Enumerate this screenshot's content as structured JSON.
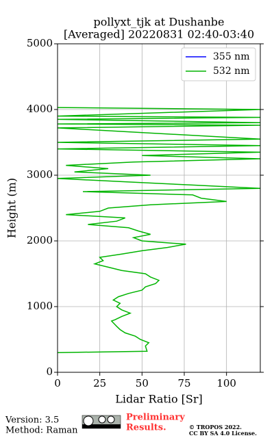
{
  "chart_data": {
    "type": "line",
    "title": "pollyxt_tjk at Dushanbe",
    "subtitle": "[Averaged] 20220831 02:40-03:40",
    "x_label": "Lidar Ratio [Sr]",
    "y_label": "Height (m)",
    "xlim": [
      0,
      120
    ],
    "xticks": [
      0,
      25,
      50,
      75,
      100
    ],
    "ylim": [
      0,
      5000
    ],
    "yticks": [
      0,
      1000,
      2000,
      3000,
      4000,
      5000
    ],
    "grid": true,
    "legend": "upper right",
    "series": [
      {
        "name": "355 nm",
        "color": "#0000ff",
        "y": [],
        "values": []
      },
      {
        "name": "532 nm",
        "color": "#00b400",
        "y": [
          300,
          320,
          400,
          450,
          500,
          550,
          600,
          650,
          700,
          780,
          800,
          850,
          900,
          950,
          1000,
          1050,
          1100,
          1150,
          1200,
          1250,
          1300,
          1350,
          1400,
          1450,
          1500,
          1550,
          1600,
          1650,
          1700,
          1750,
          1800,
          1850,
          1900,
          1950,
          2000,
          2050,
          2100,
          2150,
          2200,
          2250,
          2300,
          2350,
          2400,
          2450,
          2500,
          2550,
          2600,
          2650,
          2700,
          2750,
          2800,
          2850,
          2900,
          2950,
          3000,
          3050,
          3100,
          3150,
          3200,
          3250,
          3300,
          3350,
          3400,
          3450,
          3500,
          3550,
          3720,
          3760,
          3780,
          3800,
          3850,
          3880,
          3900,
          4000,
          4030
        ],
        "values": [
          0,
          53,
          52,
          54,
          49,
          46,
          40,
          37,
          35,
          32,
          34,
          38,
          43,
          38,
          35,
          37,
          33,
          36,
          42,
          50,
          52,
          58,
          60,
          55,
          52,
          38,
          30,
          22,
          27,
          25,
          38,
          50,
          65,
          76,
          50,
          45,
          55,
          48,
          42,
          18,
          35,
          40,
          5,
          25,
          30,
          55,
          100,
          85,
          80,
          15,
          120,
          80,
          40,
          0,
          55,
          10,
          30,
          5,
          45,
          120,
          50,
          120,
          0,
          120,
          0,
          120,
          0,
          120,
          0,
          120,
          0,
          120,
          0,
          120,
          0
        ]
      }
    ],
    "footer": {
      "version": "Version: 3.5",
      "method": "Method: Raman",
      "preliminary": "Preliminary",
      "results": "Results.",
      "copyright": "© TROPOS 2022.",
      "license": "CC BY SA 4.0 License."
    }
  }
}
